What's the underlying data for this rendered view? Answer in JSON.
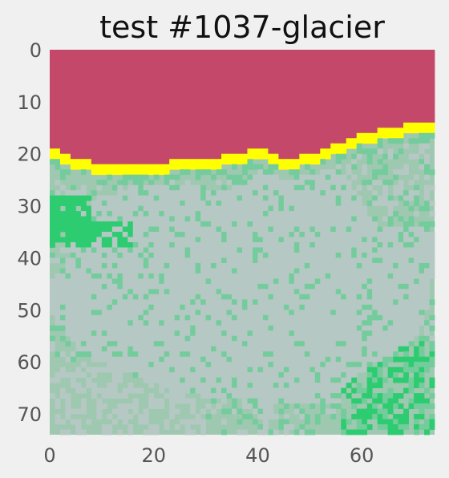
{
  "chart_data": {
    "type": "heatmap",
    "title": "test #1037-glacier",
    "xlabel": "",
    "ylabel": "",
    "xlim": [
      0,
      74
    ],
    "ylim": [
      74,
      0
    ],
    "grid": false,
    "x_ticks": [
      0,
      20,
      40,
      60
    ],
    "y_ticks": [
      0,
      10,
      20,
      30,
      40,
      50,
      60,
      70
    ],
    "colors": {
      "sky": "#c4486a",
      "boundary": "#ffff00",
      "bright_green": "#2ecc71",
      "mid_green": "#74cc9c",
      "pale_green": "#9fc8b0",
      "grey": "#b6c8c4",
      "background": "#f0f0f0"
    },
    "boundary_row_by_column": {
      "x": [
        0,
        5,
        10,
        15,
        20,
        25,
        30,
        35,
        40,
        45,
        50,
        55,
        60,
        65,
        70,
        74
      ],
      "y": [
        19,
        21,
        22,
        22,
        22,
        21,
        21,
        20,
        19,
        21,
        20,
        18,
        16,
        15,
        14,
        14
      ]
    }
  }
}
